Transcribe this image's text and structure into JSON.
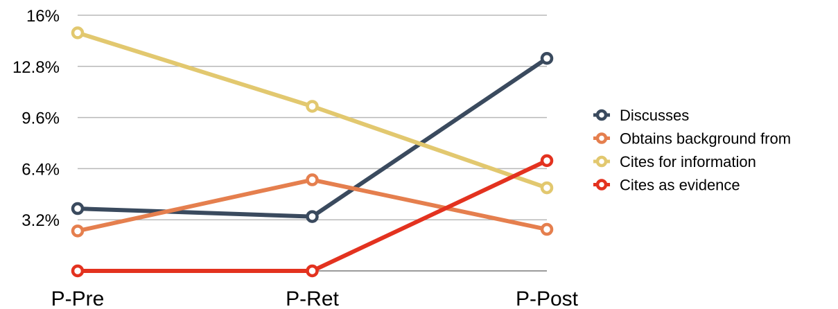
{
  "chart_data": {
    "type": "line",
    "title": "",
    "xlabel": "",
    "ylabel": "",
    "categories": [
      "P-Pre",
      "P-Ret",
      "P-Post"
    ],
    "y_ticks": [
      "3.2%",
      "6.4%",
      "9.6%",
      "12.8%",
      "16%"
    ],
    "y_tick_values": [
      3.2,
      6.4,
      9.6,
      12.8,
      16
    ],
    "ylim": [
      0,
      16
    ],
    "grid": true,
    "legend_position": "right",
    "series": [
      {
        "name": "Discusses",
        "values": [
          3.9,
          3.4,
          13.3
        ],
        "color": "#3a4a5e"
      },
      {
        "name": "Obtains background from",
        "values": [
          2.5,
          5.7,
          2.6
        ],
        "color": "#e57f4e"
      },
      {
        "name": "Cites for information",
        "values": [
          14.9,
          10.3,
          5.2
        ],
        "color": "#e2c86f"
      },
      {
        "name": "Cites as evidence",
        "values": [
          0.0,
          0.0,
          6.9
        ],
        "color": "#e3321f"
      }
    ]
  }
}
